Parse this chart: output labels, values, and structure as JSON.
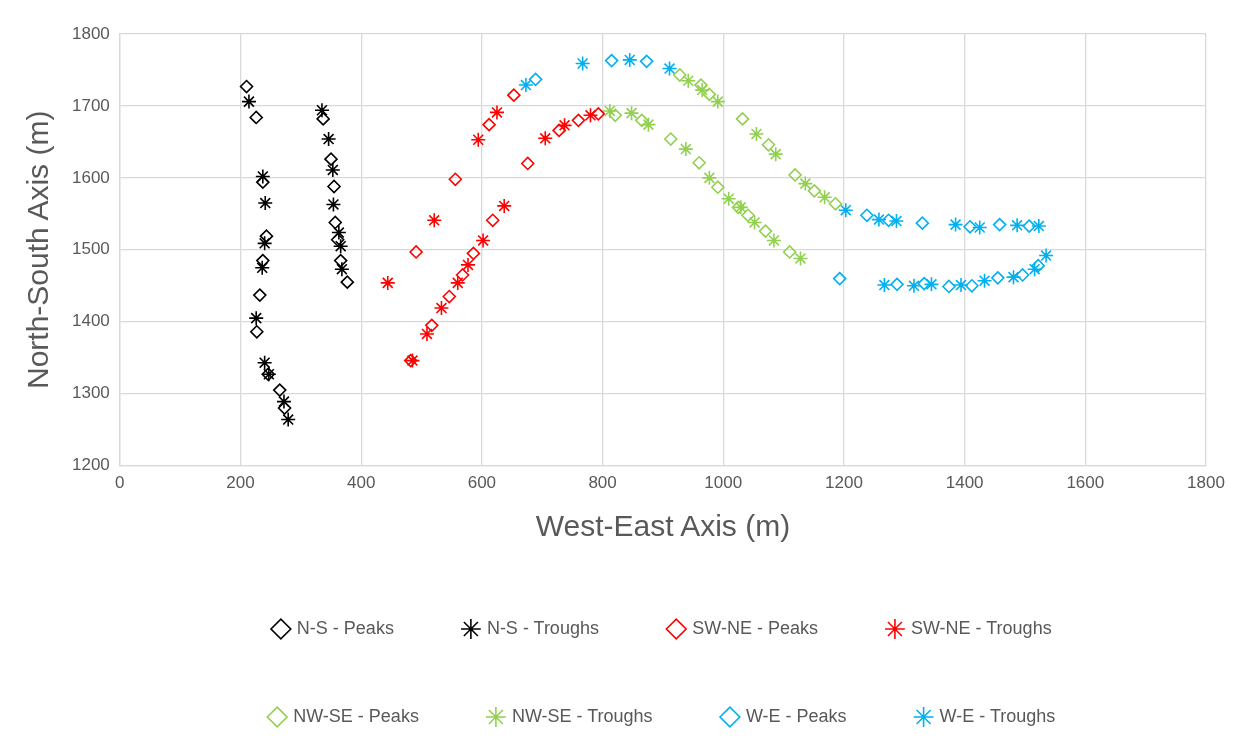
{
  "chart_data": {
    "type": "scatter",
    "xlabel": "West-East Axis (m)",
    "ylabel": "North-South Axis (m)",
    "xlim": [
      0,
      1800
    ],
    "xticks": [
      0,
      200,
      400,
      600,
      800,
      1000,
      1200,
      1400,
      1600,
      1800
    ],
    "ylim": [
      1200,
      1800
    ],
    "yticks": [
      1200,
      1300,
      1400,
      1500,
      1600,
      1700,
      1800
    ],
    "grid": true,
    "legend": "bottom",
    "series": [
      {
        "name": "N-S - Peaks",
        "color": "#000000",
        "marker": "diamond",
        "x": [
          210,
          226,
          237,
          243,
          237,
          232,
          227,
          246,
          265,
          273,
          337,
          350,
          355,
          357,
          361,
          366,
          377
        ],
        "values": [
          1727,
          1684,
          1594,
          1519,
          1485,
          1437,
          1386,
          1327,
          1305,
          1280,
          1682,
          1626,
          1588,
          1538,
          1514,
          1485,
          1455
        ]
      },
      {
        "name": "N-S - Troughs",
        "color": "#000000",
        "marker": "cross",
        "x": [
          214,
          237,
          241,
          240,
          236,
          226,
          240,
          247,
          272,
          279,
          335,
          346,
          353,
          354,
          363,
          366,
          368
        ],
        "values": [
          1706,
          1602,
          1565,
          1509,
          1475,
          1405,
          1343,
          1327,
          1289,
          1264,
          1694,
          1654,
          1611,
          1563,
          1524,
          1505,
          1473
        ]
      },
      {
        "name": "SW-NE - Peaks",
        "color": "#ff0000",
        "marker": "diamond",
        "x": [
          653,
          612,
          556,
          491,
          482,
          517,
          546,
          568,
          586,
          618,
          676,
          728,
          760,
          793
        ],
        "values": [
          1715,
          1674,
          1598,
          1497,
          1346,
          1395,
          1435,
          1465,
          1495,
          1541,
          1620,
          1666,
          1680,
          1689
        ]
      },
      {
        "name": "SW-NE - Troughs",
        "color": "#ff0000",
        "marker": "cross",
        "x": [
          625,
          594,
          521,
          444,
          485,
          509,
          533,
          560,
          577,
          602,
          637,
          705,
          737,
          780
        ],
        "values": [
          1691,
          1653,
          1541,
          1454,
          1346,
          1383,
          1419,
          1454,
          1479,
          1513,
          1561,
          1655,
          1673,
          1687
        ]
      },
      {
        "name": "NW-SE - Peaks",
        "color": "#92d050",
        "marker": "diamond",
        "x": [
          821,
          865,
          913,
          960,
          991,
          1025,
          1041,
          1070,
          1110,
          928,
          963,
          977,
          1032,
          1075,
          1119,
          1151,
          1186
        ],
        "values": [
          1687,
          1680,
          1654,
          1621,
          1587,
          1559,
          1548,
          1526,
          1497,
          1743,
          1729,
          1716,
          1682,
          1646,
          1604,
          1582,
          1564
        ]
      },
      {
        "name": "NW-SE - Troughs",
        "color": "#92d050",
        "marker": "cross",
        "x": [
          812,
          848,
          876,
          938,
          977,
          1009,
          1029,
          1052,
          1084,
          1128,
          942,
          965,
          991,
          1055,
          1087,
          1136,
          1168
        ],
        "values": [
          1693,
          1690,
          1674,
          1640,
          1600,
          1571,
          1559,
          1538,
          1513,
          1488,
          1735,
          1722,
          1706,
          1661,
          1633,
          1592,
          1573
        ]
      },
      {
        "name": "W-E - Peaks",
        "color": "#00b0f0",
        "marker": "diamond",
        "x": [
          689,
          815,
          873,
          1238,
          1274,
          1330,
          1409,
          1458,
          1507,
          1193,
          1288,
          1333,
          1374,
          1412,
          1455,
          1496,
          1522
        ],
        "values": [
          1737,
          1763,
          1762,
          1548,
          1541,
          1537,
          1532,
          1535,
          1533,
          1460,
          1452,
          1453,
          1449,
          1450,
          1461,
          1465,
          1478
        ]
      },
      {
        "name": "W-E - Troughs",
        "color": "#00b0f0",
        "marker": "cross",
        "x": [
          673,
          767,
          845,
          911,
          1203,
          1258,
          1287,
          1385,
          1425,
          1487,
          1523,
          1267,
          1316,
          1345,
          1394,
          1433,
          1481,
          1516,
          1535
        ],
        "values": [
          1729,
          1759,
          1764,
          1752,
          1555,
          1542,
          1540,
          1535,
          1531,
          1534,
          1533,
          1451,
          1450,
          1452,
          1451,
          1457,
          1462,
          1473,
          1492
        ]
      }
    ]
  }
}
